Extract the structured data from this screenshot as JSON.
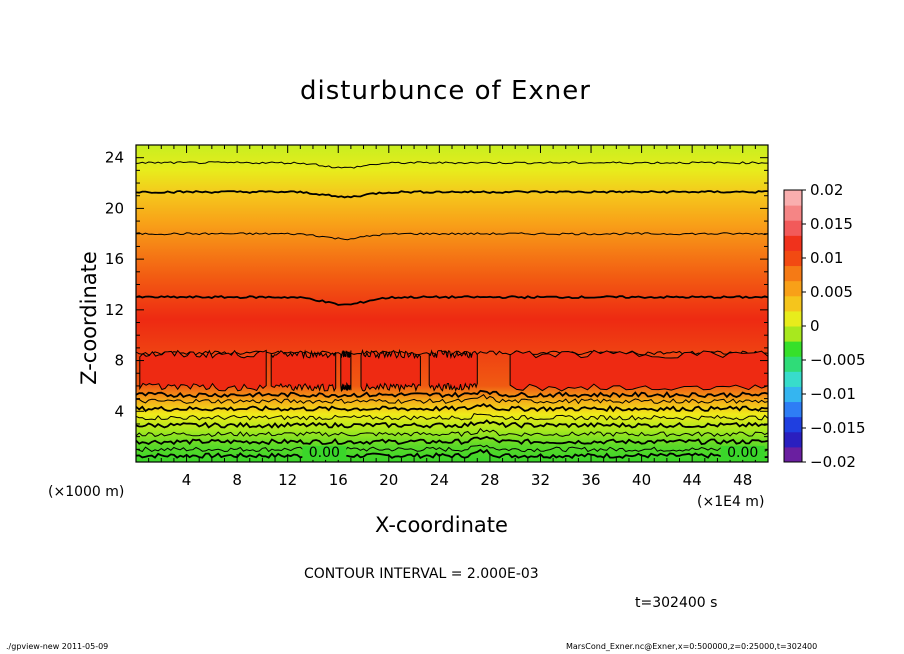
{
  "chart_data": {
    "type": "contour",
    "title": "disturbunce of Exner",
    "xlabel": "X-coordinate",
    "ylabel": "Z-coordinate",
    "x_ticks": [
      "4",
      "8",
      "12",
      "16",
      "20",
      "24",
      "28",
      "32",
      "36",
      "40",
      "44",
      "48"
    ],
    "x_tick_values": [
      4,
      8,
      12,
      16,
      20,
      24,
      28,
      32,
      36,
      40,
      44,
      48
    ],
    "y_ticks": [
      "4",
      "8",
      "12",
      "16",
      "20",
      "24"
    ],
    "y_tick_values": [
      4,
      8,
      12,
      16,
      20,
      24
    ],
    "xlim": [
      0,
      50
    ],
    "ylim": [
      0,
      25
    ],
    "x_unit_left": "(×1000 m)",
    "x_unit_right": "(×1E4 m)",
    "colorbar_labels": [
      "0.02",
      "0.015",
      "0.01",
      "0.005",
      "0",
      "−0.005",
      "−0.01",
      "−0.015",
      "−0.02"
    ],
    "colorbar_values": [
      0.02,
      0.015,
      0.01,
      0.005,
      0,
      -0.005,
      -0.01,
      -0.015,
      -0.02
    ],
    "contour_line_labels": [
      "0.00",
      "0.00"
    ],
    "contour_interval_text": "CONTOUR INTERVAL = 2.000E-03",
    "time_text": "t=302400 s",
    "colorscale": [
      "#6a1fa0",
      "#2a1fbf",
      "#1f3fe0",
      "#2e7df5",
      "#35b5f0",
      "#38dccb",
      "#2fdc78",
      "#36e02a",
      "#a8e81e",
      "#e8ec1c",
      "#f5c51c",
      "#f8a018",
      "#f57a15",
      "#f24a12",
      "#f0321c",
      "#f25a5a",
      "#f58585",
      "#f9aeae"
    ]
  },
  "footer": {
    "left": "./gpview-new   2011-05-09",
    "right": "MarsCond_Exner.nc@Exner,x=0:500000,z=0:25000,t=302400"
  }
}
